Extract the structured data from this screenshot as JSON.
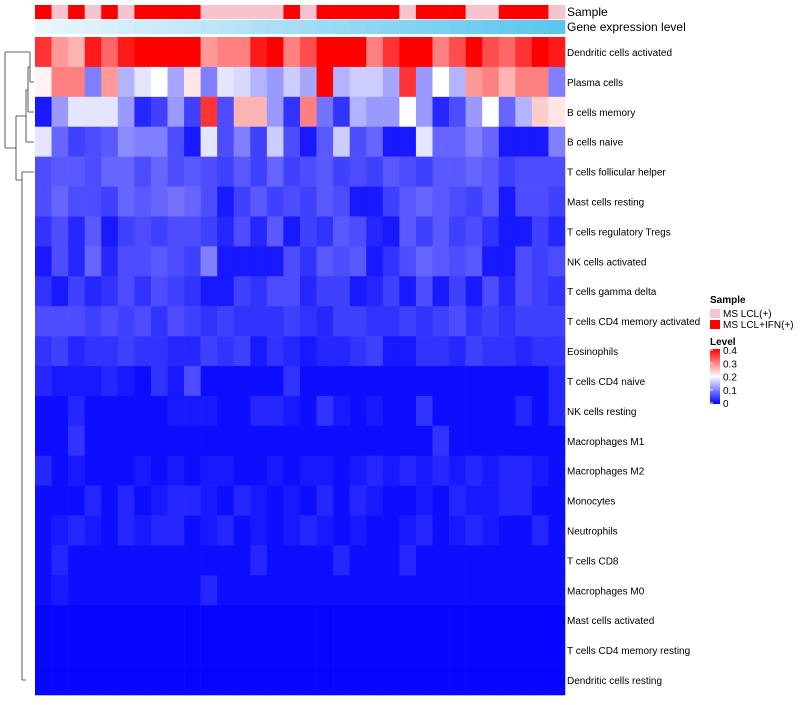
{
  "chart_data": {
    "type": "heatmap",
    "title": "",
    "annotation_tracks": [
      {
        "name": "Sample",
        "kind": "categorical"
      },
      {
        "name": "Gene expression level",
        "kind": "continuous"
      }
    ],
    "sample_groups": [
      "MS LCL(+)",
      "MS LCL+IFN(+)"
    ],
    "sample_group_colors": {
      "MS LCL(+)": "#f7c3cf",
      "MS LCL+IFN(+)": "#ff0000"
    },
    "sample_annotation": [
      1,
      0,
      1,
      0,
      1,
      0,
      1,
      1,
      1,
      1,
      0,
      0,
      0,
      0,
      0,
      1,
      0,
      1,
      1,
      1,
      1,
      1,
      0,
      1,
      1,
      1,
      0,
      0,
      1,
      1,
      1,
      0
    ],
    "expression_level_colors": [
      "#eaf6fc",
      "#5bc5ef"
    ],
    "legend": {
      "sample_title": "Sample",
      "level_title": "Level",
      "level_ticks": [
        "0.4",
        "0.3",
        "0.2",
        "0.1",
        "0"
      ],
      "level_range": [
        0,
        0.4
      ],
      "placement": "right",
      "color_low": "#0000ff",
      "color_mid": "#ffffff",
      "color_high": "#ff0000"
    },
    "rows": [
      "Dendritic cells activated",
      "Plasma cells",
      "B cells memory",
      "B cells naive",
      "T cells follicular helper",
      "Mast cells resting",
      "T cells regulatory  Tregs",
      "NK cells activated",
      "T cells gamma delta",
      "T cells CD4 memory activated",
      "Eosinophils",
      "T cells CD4 naive",
      "NK cells resting",
      "Macrophages M1",
      "Macrophages M2",
      "Monocytes",
      "Neutrophils",
      "T cells CD8",
      "Macrophages M0",
      "Mast cells activated",
      "T cells CD4 memory resting",
      "Dendritic cells resting"
    ],
    "values": [
      [
        0.36,
        0.28,
        0.26,
        0.38,
        0.32,
        0.38,
        0.4,
        0.4,
        0.4,
        0.4,
        0.28,
        0.3,
        0.3,
        0.38,
        0.4,
        0.3,
        0.34,
        0.4,
        0.4,
        0.4,
        0.3,
        0.36,
        0.4,
        0.4,
        0.3,
        0.34,
        0.4,
        0.34,
        0.32,
        0.36,
        0.4,
        0.38
      ],
      [
        0.21,
        0.3,
        0.3,
        0.1,
        0.28,
        0.14,
        0.18,
        0.2,
        0.13,
        0.22,
        0.1,
        0.18,
        0.17,
        0.14,
        0.12,
        0.16,
        0.13,
        0.4,
        0.14,
        0.16,
        0.16,
        0.13,
        0.36,
        0.12,
        0.2,
        0.14,
        0.28,
        0.3,
        0.26,
        0.3,
        0.3,
        0.1
      ],
      [
        0.02,
        0.12,
        0.18,
        0.18,
        0.18,
        0.12,
        0.03,
        0.05,
        0.12,
        0.05,
        0.36,
        0.06,
        0.26,
        0.26,
        0.12,
        0.04,
        0.3,
        0.09,
        0.04,
        0.14,
        0.12,
        0.12,
        0.2,
        0.12,
        0.03,
        0.06,
        0.12,
        0.2,
        0.08,
        0.14,
        0.24,
        0.22
      ],
      [
        0.18,
        0.08,
        0.05,
        0.06,
        0.07,
        0.11,
        0.1,
        0.1,
        0.06,
        0.02,
        0.18,
        0.06,
        0.1,
        0.05,
        0.16,
        0.06,
        0.02,
        0.07,
        0.16,
        0.06,
        0.08,
        0.02,
        0.02,
        0.18,
        0.08,
        0.08,
        0.1,
        0.08,
        0.02,
        0.02,
        0.02,
        0.1
      ],
      [
        0.06,
        0.07,
        0.07,
        0.06,
        0.08,
        0.08,
        0.06,
        0.08,
        0.06,
        0.07,
        0.06,
        0.05,
        0.07,
        0.05,
        0.08,
        0.05,
        0.06,
        0.07,
        0.05,
        0.06,
        0.05,
        0.07,
        0.06,
        0.05,
        0.07,
        0.07,
        0.08,
        0.07,
        0.05,
        0.06,
        0.06,
        0.06
      ],
      [
        0.06,
        0.08,
        0.06,
        0.06,
        0.05,
        0.08,
        0.07,
        0.08,
        0.09,
        0.08,
        0.06,
        0.02,
        0.05,
        0.07,
        0.05,
        0.06,
        0.05,
        0.07,
        0.06,
        0.02,
        0.02,
        0.05,
        0.07,
        0.08,
        0.07,
        0.06,
        0.05,
        0.07,
        0.02,
        0.06,
        0.06,
        0.05
      ],
      [
        0.04,
        0.06,
        0.03,
        0.07,
        0.02,
        0.05,
        0.06,
        0.05,
        0.06,
        0.06,
        0.05,
        0.03,
        0.06,
        0.03,
        0.07,
        0.02,
        0.05,
        0.04,
        0.07,
        0.06,
        0.03,
        0.02,
        0.07,
        0.05,
        0.07,
        0.05,
        0.06,
        0.04,
        0.02,
        0.02,
        0.05,
        0.03
      ],
      [
        0.02,
        0.06,
        0.03,
        0.08,
        0.03,
        0.06,
        0.06,
        0.07,
        0.06,
        0.05,
        0.1,
        0.02,
        0.02,
        0.02,
        0.02,
        0.06,
        0.04,
        0.07,
        0.06,
        0.07,
        0.02,
        0.04,
        0.06,
        0.08,
        0.07,
        0.06,
        0.07,
        0.02,
        0.02,
        0.06,
        0.05,
        0.06
      ],
      [
        0.04,
        0.02,
        0.05,
        0.03,
        0.04,
        0.06,
        0.04,
        0.06,
        0.05,
        0.04,
        0.02,
        0.02,
        0.05,
        0.04,
        0.06,
        0.06,
        0.03,
        0.05,
        0.05,
        0.02,
        0.03,
        0.05,
        0.02,
        0.06,
        0.02,
        0.05,
        0.02,
        0.06,
        0.03,
        0.06,
        0.05,
        0.04
      ],
      [
        0.06,
        0.06,
        0.06,
        0.05,
        0.06,
        0.05,
        0.06,
        0.04,
        0.06,
        0.05,
        0.04,
        0.05,
        0.04,
        0.04,
        0.04,
        0.05,
        0.04,
        0.03,
        0.05,
        0.05,
        0.04,
        0.04,
        0.05,
        0.04,
        0.05,
        0.06,
        0.04,
        0.05,
        0.04,
        0.05,
        0.05,
        0.05
      ],
      [
        0.04,
        0.05,
        0.03,
        0.04,
        0.04,
        0.05,
        0.04,
        0.04,
        0.03,
        0.03,
        0.05,
        0.04,
        0.05,
        0.02,
        0.04,
        0.03,
        0.02,
        0.03,
        0.03,
        0.04,
        0.05,
        0.02,
        0.02,
        0.04,
        0.04,
        0.03,
        0.05,
        0.04,
        0.04,
        0.03,
        0.04,
        0.04
      ],
      [
        0.03,
        0.02,
        0.02,
        0.02,
        0.03,
        0.02,
        0.01,
        0.04,
        0.02,
        0.06,
        0.01,
        0.01,
        0.01,
        0.01,
        0.01,
        0.04,
        0.01,
        0.01,
        0.01,
        0.01,
        0.01,
        0.01,
        0.01,
        0.01,
        0.01,
        0.01,
        0.01,
        0.01,
        0.01,
        0.01,
        0.01,
        0.03
      ],
      [
        0.01,
        0.01,
        0.03,
        0.01,
        0.01,
        0.01,
        0.01,
        0.01,
        0.02,
        0.02,
        0.02,
        0.01,
        0.01,
        0.03,
        0.03,
        0.02,
        0.01,
        0.04,
        0.02,
        0.01,
        0.02,
        0.01,
        0.01,
        0.04,
        0.01,
        0.01,
        0.01,
        0.01,
        0.01,
        0.03,
        0.01,
        0.03
      ],
      [
        0.01,
        0.01,
        0.04,
        0.01,
        0.01,
        0.01,
        0.01,
        0.01,
        0.01,
        0.01,
        0.01,
        0.01,
        0.01,
        0.01,
        0.01,
        0.01,
        0.01,
        0.01,
        0.01,
        0.01,
        0.01,
        0.01,
        0.01,
        0.01,
        0.04,
        0.01,
        0.01,
        0.01,
        0.01,
        0.01,
        0.01,
        0.01
      ],
      [
        0.03,
        0.01,
        0.02,
        0.01,
        0.01,
        0.01,
        0.02,
        0.01,
        0.02,
        0.01,
        0.02,
        0.02,
        0.01,
        0.01,
        0.02,
        0.01,
        0.02,
        0.02,
        0.01,
        0.02,
        0.03,
        0.02,
        0.03,
        0.02,
        0.03,
        0.02,
        0.03,
        0.02,
        0.03,
        0.03,
        0.02,
        0.01
      ],
      [
        0.01,
        0.01,
        0.01,
        0.03,
        0.01,
        0.03,
        0.01,
        0.02,
        0.03,
        0.03,
        0.02,
        0.01,
        0.03,
        0.02,
        0.01,
        0.02,
        0.01,
        0.03,
        0.01,
        0.03,
        0.02,
        0.01,
        0.01,
        0.02,
        0.01,
        0.03,
        0.02,
        0.02,
        0.03,
        0.03,
        0.01,
        0.01
      ],
      [
        0.01,
        0.02,
        0.03,
        0.02,
        0.01,
        0.03,
        0.02,
        0.03,
        0.03,
        0.01,
        0.02,
        0.03,
        0.01,
        0.02,
        0.01,
        0.02,
        0.03,
        0.02,
        0.01,
        0.02,
        0.01,
        0.01,
        0.02,
        0.03,
        0.01,
        0.02,
        0.03,
        0.02,
        0.01,
        0.01,
        0.03,
        0.01
      ],
      [
        0.01,
        0.03,
        0.01,
        0.01,
        0.01,
        0.01,
        0.01,
        0.01,
        0.01,
        0.01,
        0.01,
        0.01,
        0.01,
        0.03,
        0.01,
        0.01,
        0.01,
        0.01,
        0.03,
        0.01,
        0.01,
        0.01,
        0.03,
        0.01,
        0.01,
        0.01,
        0.01,
        0.01,
        0.01,
        0.01,
        0.01,
        0.01
      ],
      [
        0.01,
        0.02,
        0.01,
        0.01,
        0.01,
        0.01,
        0.01,
        0.01,
        0.01,
        0.01,
        0.03,
        0.01,
        0.01,
        0.01,
        0.01,
        0.01,
        0.01,
        0.01,
        0.01,
        0.01,
        0.01,
        0.01,
        0.01,
        0.01,
        0.01,
        0.01,
        0.01,
        0.01,
        0.01,
        0.01,
        0.01,
        0.01
      ],
      [
        0.005,
        0.005,
        0.005,
        0.005,
        0.005,
        0.005,
        0.005,
        0.005,
        0.005,
        0.005,
        0.005,
        0.005,
        0.005,
        0.005,
        0.005,
        0.005,
        0.005,
        0.005,
        0.005,
        0.005,
        0.005,
        0.005,
        0.005,
        0.005,
        0.005,
        0.005,
        0.005,
        0.005,
        0.005,
        0.005,
        0.005,
        0.005
      ],
      [
        0.005,
        0.005,
        0.005,
        0.005,
        0.005,
        0.005,
        0.005,
        0.005,
        0.005,
        0.005,
        0.005,
        0.005,
        0.005,
        0.005,
        0.005,
        0.005,
        0.005,
        0.005,
        0.005,
        0.005,
        0.005,
        0.005,
        0.005,
        0.005,
        0.005,
        0.005,
        0.005,
        0.005,
        0.005,
        0.005,
        0.005,
        0.005
      ],
      [
        0.005,
        0.005,
        0.005,
        0.005,
        0.005,
        0.005,
        0.005,
        0.005,
        0.005,
        0.005,
        0.005,
        0.005,
        0.005,
        0.005,
        0.005,
        0.005,
        0.005,
        0.005,
        0.005,
        0.005,
        0.005,
        0.005,
        0.005,
        0.005,
        0.005,
        0.005,
        0.005,
        0.005,
        0.005,
        0.005,
        0.005,
        0.005
      ]
    ]
  }
}
